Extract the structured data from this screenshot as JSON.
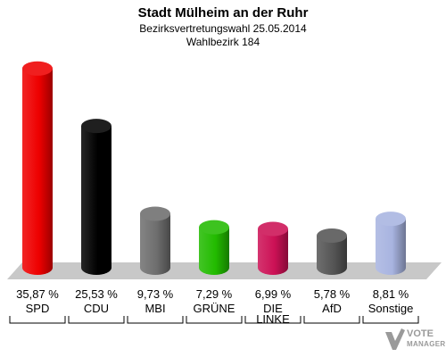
{
  "header": {
    "title": "Stadt Mülheim an der Ruhr",
    "subtitle": "Bezirksvertretungswahl 25.05.2014",
    "district": "Wahlbezirk 184"
  },
  "watermark": {
    "line1": "VOTE",
    "line2": "MANAGER"
  },
  "chart_data": {
    "type": "bar",
    "title": "Stadt Mülheim an der Ruhr",
    "categories": [
      "SPD",
      "CDU",
      "MBI",
      "GRÜNE",
      "DIE LINKE",
      "AfD",
      "Sonstige"
    ],
    "category_lines": [
      [
        "SPD"
      ],
      [
        "CDU"
      ],
      [
        "MBI"
      ],
      [
        "GRÜNE"
      ],
      [
        "DIE",
        "LINKE"
      ],
      [
        "AfD"
      ],
      [
        "Sonstige"
      ]
    ],
    "values": [
      35.87,
      25.53,
      9.73,
      7.29,
      6.99,
      5.78,
      8.81
    ],
    "value_labels": [
      "35,87 %",
      "25,53 %",
      "9,73 %",
      "7,29 %",
      "6,99 %",
      "5,78 %",
      "8,81 %"
    ],
    "colors": [
      "#ee0000",
      "#000000",
      "#6e6e6e",
      "#22bb00",
      "#cc1155",
      "#555555",
      "#a8b4e0"
    ],
    "ylim": [
      0,
      36
    ],
    "grid": false,
    "legend": "none",
    "xlabel": "",
    "ylabel": ""
  }
}
